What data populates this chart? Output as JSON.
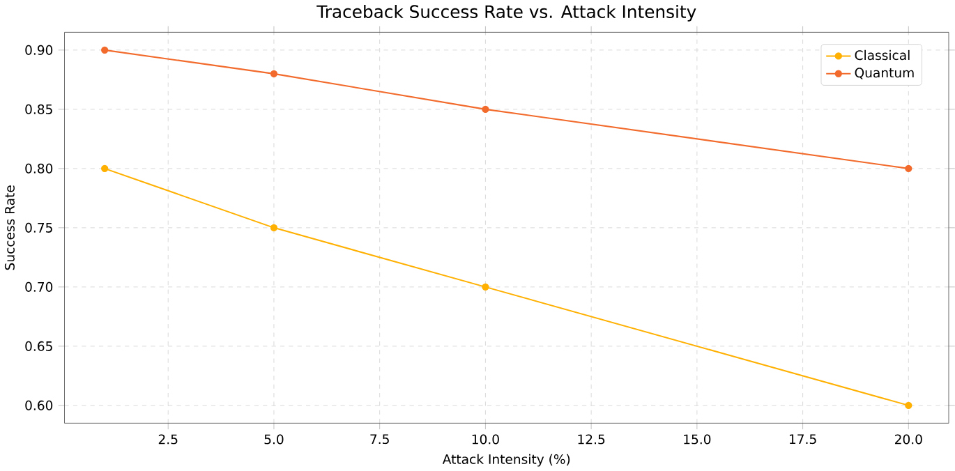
{
  "chart_data": {
    "type": "line",
    "title": "Traceback Success Rate vs. Attack Intensity",
    "xlabel": "Attack Intensity (%)",
    "ylabel": "Success Rate",
    "x": [
      1,
      5,
      10,
      20
    ],
    "series": [
      {
        "name": "Classical",
        "color": "#ffb000",
        "values": [
          0.8,
          0.75,
          0.7,
          0.6
        ]
      },
      {
        "name": "Quantum",
        "color": "#f26b2c",
        "values": [
          0.9,
          0.88,
          0.85,
          0.8
        ]
      }
    ],
    "xlim": [
      0.05,
      20.95
    ],
    "ylim": [
      0.585,
      0.915
    ],
    "xticks": [
      {
        "value": 2.5,
        "label": "2.5"
      },
      {
        "value": 5,
        "label": "5.0"
      },
      {
        "value": 7.5,
        "label": "7.5"
      },
      {
        "value": 10,
        "label": "10.0"
      },
      {
        "value": 12.5,
        "label": "12.5"
      },
      {
        "value": 15,
        "label": "15.0"
      },
      {
        "value": 17.5,
        "label": "17.5"
      },
      {
        "value": 20,
        "label": "20.0"
      }
    ],
    "yticks": [
      {
        "value": 0.6,
        "label": "0.60"
      },
      {
        "value": 0.65,
        "label": "0.65"
      },
      {
        "value": 0.7,
        "label": "0.70"
      },
      {
        "value": 0.75,
        "label": "0.75"
      },
      {
        "value": 0.8,
        "label": "0.80"
      },
      {
        "value": 0.85,
        "label": "0.85"
      },
      {
        "value": 0.9,
        "label": "0.90"
      }
    ],
    "grid": true,
    "legend": "top right",
    "marker": "circle",
    "line_style": "solid"
  }
}
